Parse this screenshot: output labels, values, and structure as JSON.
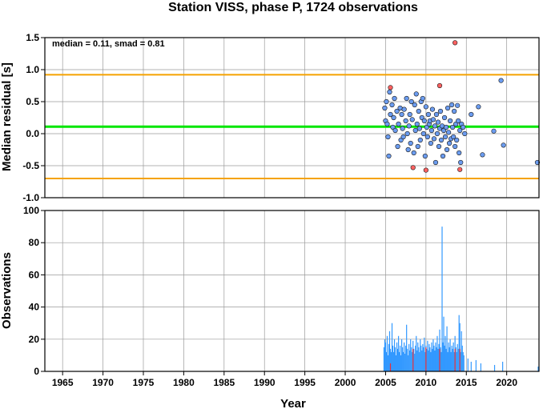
{
  "chart_data": [
    {
      "type": "scatter",
      "title": "Station VISS, phase P, 1724 observations",
      "xlabel": "",
      "ylabel": "Median residual [s]",
      "xlim": [
        1962.8,
        2024.0
      ],
      "ylim": [
        -1.0,
        1.5
      ],
      "yticks": [
        "1.5",
        "1.0",
        "0.5",
        "0.0",
        "-0.5",
        "-1.0"
      ],
      "annotation": "median = 0.11, smad = 0.81",
      "grid": true,
      "reference_lines": [
        {
          "y": 0.11,
          "color": "#00e600",
          "role": "median"
        },
        {
          "y": 0.92,
          "color": "#f5a200",
          "role": "upper bound"
        },
        {
          "y": -0.7,
          "color": "#f5a200",
          "role": "lower bound"
        }
      ],
      "colors": {
        "point": "#6b9cf0",
        "outlier": "#ff6161",
        "edge": "#1a1a1a"
      },
      "series": [
        {
          "role": "inliers",
          "points": [
            [
              2004.9,
              0.4
            ],
            [
              2005.0,
              0.2
            ],
            [
              2005.1,
              0.5
            ],
            [
              2005.2,
              0.15
            ],
            [
              2005.3,
              -0.05
            ],
            [
              2005.4,
              -0.35
            ],
            [
              2005.5,
              0.65
            ],
            [
              2005.6,
              0.3
            ],
            [
              2005.8,
              0.45
            ],
            [
              2005.9,
              0.1
            ],
            [
              2006.0,
              0.25
            ],
            [
              2006.1,
              0.55
            ],
            [
              2006.2,
              0.05
            ],
            [
              2006.4,
              0.35
            ],
            [
              2006.5,
              -0.2
            ],
            [
              2006.6,
              0.15
            ],
            [
              2006.8,
              0.4
            ],
            [
              2006.9,
              -0.1
            ],
            [
              2007.0,
              0.3
            ],
            [
              2007.1,
              0.08
            ],
            [
              2007.2,
              -0.05
            ],
            [
              2007.3,
              0.38
            ],
            [
              2007.5,
              0.2
            ],
            [
              2007.6,
              0.55
            ],
            [
              2007.7,
              0.0
            ],
            [
              2007.8,
              -0.25
            ],
            [
              2007.9,
              0.12
            ],
            [
              2008.0,
              0.3
            ],
            [
              2008.1,
              -0.15
            ],
            [
              2008.2,
              0.5
            ],
            [
              2008.3,
              0.22
            ],
            [
              2008.5,
              -0.3
            ],
            [
              2008.6,
              0.45
            ],
            [
              2008.7,
              0.05
            ],
            [
              2008.8,
              0.62
            ],
            [
              2008.9,
              0.15
            ],
            [
              2009.0,
              -0.2
            ],
            [
              2009.1,
              0.35
            ],
            [
              2009.2,
              0.08
            ],
            [
              2009.3,
              -0.1
            ],
            [
              2009.4,
              0.5
            ],
            [
              2009.5,
              0.25
            ],
            [
              2009.6,
              0.55
            ],
            [
              2009.7,
              0.0
            ],
            [
              2009.8,
              0.2
            ],
            [
              2009.9,
              -0.35
            ],
            [
              2010.0,
              0.42
            ],
            [
              2010.1,
              0.1
            ],
            [
              2010.2,
              -0.05
            ],
            [
              2010.3,
              0.3
            ],
            [
              2010.4,
              0.15
            ],
            [
              2010.5,
              0.2
            ],
            [
              2010.6,
              -0.15
            ],
            [
              2010.7,
              0.05
            ],
            [
              2010.8,
              0.38
            ],
            [
              2010.9,
              0.22
            ],
            [
              2011.0,
              -0.08
            ],
            [
              2011.1,
              0.12
            ],
            [
              2011.2,
              -0.45
            ],
            [
              2011.3,
              0.3
            ],
            [
              2011.4,
              0.0
            ],
            [
              2011.5,
              0.18
            ],
            [
              2011.6,
              -0.2
            ],
            [
              2011.7,
              0.08
            ],
            [
              2011.8,
              0.35
            ],
            [
              2011.9,
              -0.1
            ],
            [
              2012.0,
              0.12
            ],
            [
              2012.1,
              -0.35
            ],
            [
              2012.2,
              0.05
            ],
            [
              2012.3,
              0.25
            ],
            [
              2012.4,
              -0.05
            ],
            [
              2012.5,
              0.1
            ],
            [
              2012.6,
              -0.25
            ],
            [
              2012.7,
              0.4
            ],
            [
              2012.8,
              0.02
            ],
            [
              2012.9,
              -0.15
            ],
            [
              2013.0,
              0.2
            ],
            [
              2013.1,
              -0.08
            ],
            [
              2013.2,
              0.45
            ],
            [
              2013.3,
              0.1
            ],
            [
              2013.4,
              -0.05
            ],
            [
              2013.5,
              0.35
            ],
            [
              2013.6,
              -0.2
            ],
            [
              2013.7,
              0.15
            ],
            [
              2013.8,
              -0.1
            ],
            [
              2013.9,
              0.44
            ],
            [
              2014.0,
              0.2
            ],
            [
              2014.1,
              -0.3
            ],
            [
              2014.2,
              0.05
            ],
            [
              2014.3,
              -0.45
            ],
            [
              2014.4,
              0.15
            ],
            [
              2014.6,
              0.1
            ],
            [
              2014.8,
              0.0
            ],
            [
              2015.6,
              0.3
            ],
            [
              2016.5,
              0.42
            ],
            [
              2017.0,
              -0.33
            ],
            [
              2018.4,
              0.04
            ],
            [
              2019.3,
              0.83
            ],
            [
              2019.6,
              -0.18
            ],
            [
              2023.8,
              -0.45
            ]
          ]
        },
        {
          "role": "outliers",
          "points": [
            [
              2005.6,
              0.72
            ],
            [
              2008.4,
              -0.53
            ],
            [
              2010.0,
              -0.57
            ],
            [
              2011.7,
              0.75
            ],
            [
              2013.6,
              1.42
            ],
            [
              2014.2,
              -0.56
            ]
          ]
        }
      ]
    },
    {
      "type": "bar",
      "title": "",
      "xlabel": "Year",
      "ylabel": "Observations",
      "xlim": [
        1962.8,
        2024.0
      ],
      "ylim": [
        0,
        100
      ],
      "yticks": [
        "100",
        "80",
        "60",
        "40",
        "20",
        "0"
      ],
      "xticks": [
        "1965",
        "1970",
        "1975",
        "1980",
        "1985",
        "1990",
        "1995",
        "2000",
        "2005",
        "2010",
        "2015",
        "2020"
      ],
      "grid": true,
      "colors": {
        "bar": "#3399ff",
        "outlier_bar": "#e8303a"
      },
      "series": [
        {
          "role": "observations",
          "points": [
            [
              2004.8,
              15
            ],
            [
              2004.9,
              20
            ],
            [
              2005.0,
              18
            ],
            [
              2005.1,
              12
            ],
            [
              2005.2,
              22
            ],
            [
              2005.3,
              10
            ],
            [
              2005.4,
              17
            ],
            [
              2005.5,
              25
            ],
            [
              2005.6,
              14
            ],
            [
              2005.7,
              12
            ],
            [
              2005.8,
              30
            ],
            [
              2005.9,
              16
            ],
            [
              2006.0,
              12
            ],
            [
              2006.1,
              20
            ],
            [
              2006.2,
              15
            ],
            [
              2006.3,
              10
            ],
            [
              2006.4,
              18
            ],
            [
              2006.5,
              14
            ],
            [
              2006.6,
              22
            ],
            [
              2006.7,
              12
            ],
            [
              2006.8,
              16
            ],
            [
              2006.9,
              10
            ],
            [
              2007.0,
              20
            ],
            [
              2007.1,
              15
            ],
            [
              2007.2,
              12
            ],
            [
              2007.3,
              18
            ],
            [
              2007.4,
              11
            ],
            [
              2007.5,
              16
            ],
            [
              2007.6,
              29
            ],
            [
              2007.7,
              14
            ],
            [
              2007.8,
              10
            ],
            [
              2007.9,
              17
            ],
            [
              2008.0,
              13
            ],
            [
              2008.1,
              20
            ],
            [
              2008.2,
              15
            ],
            [
              2008.3,
              12
            ],
            [
              2008.4,
              19
            ],
            [
              2008.5,
              14
            ],
            [
              2008.6,
              11
            ],
            [
              2008.7,
              16
            ],
            [
              2008.8,
              22
            ],
            [
              2008.9,
              13
            ],
            [
              2009.0,
              18
            ],
            [
              2009.1,
              15
            ],
            [
              2009.2,
              12
            ],
            [
              2009.3,
              20
            ],
            [
              2009.4,
              16
            ],
            [
              2009.5,
              13
            ],
            [
              2009.6,
              17
            ],
            [
              2009.7,
              15
            ],
            [
              2009.8,
              21
            ],
            [
              2009.9,
              12
            ],
            [
              2010.0,
              16
            ],
            [
              2010.1,
              14
            ],
            [
              2010.2,
              19
            ],
            [
              2010.3,
              13
            ],
            [
              2010.4,
              17
            ],
            [
              2010.5,
              15
            ],
            [
              2010.6,
              12
            ],
            [
              2010.7,
              18
            ],
            [
              2010.8,
              14
            ],
            [
              2010.9,
              20
            ],
            [
              2011.0,
              16
            ],
            [
              2011.1,
              13
            ],
            [
              2011.2,
              18
            ],
            [
              2011.3,
              15
            ],
            [
              2011.4,
              22
            ],
            [
              2011.5,
              14
            ],
            [
              2011.6,
              17
            ],
            [
              2011.7,
              26
            ],
            [
              2011.8,
              15
            ],
            [
              2011.9,
              12
            ],
            [
              2012.0,
              90
            ],
            [
              2012.1,
              18
            ],
            [
              2012.2,
              34
            ],
            [
              2012.3,
              16
            ],
            [
              2012.4,
              22
            ],
            [
              2012.5,
              14
            ],
            [
              2012.6,
              28
            ],
            [
              2012.7,
              12
            ],
            [
              2012.8,
              18
            ],
            [
              2012.9,
              15
            ],
            [
              2013.0,
              20
            ],
            [
              2013.1,
              12
            ],
            [
              2013.2,
              16
            ],
            [
              2013.3,
              14
            ],
            [
              2013.4,
              18
            ],
            [
              2013.5,
              12
            ],
            [
              2013.6,
              22
            ],
            [
              2013.7,
              15
            ],
            [
              2013.8,
              12
            ],
            [
              2013.9,
              17
            ],
            [
              2014.0,
              14
            ],
            [
              2014.1,
              35
            ],
            [
              2014.2,
              30
            ],
            [
              2014.3,
              12
            ],
            [
              2014.4,
              25
            ],
            [
              2014.5,
              16
            ],
            [
              2014.6,
              12
            ],
            [
              2014.7,
              10
            ],
            [
              2015.2,
              8
            ],
            [
              2015.6,
              6
            ],
            [
              2016.2,
              7
            ],
            [
              2016.8,
              5
            ],
            [
              2018.5,
              4
            ],
            [
              2019.5,
              6
            ],
            [
              2023.9,
              3
            ]
          ]
        },
        {
          "role": "outlier_observations",
          "points": [
            [
              2005.6,
              5
            ],
            [
              2008.4,
              14
            ],
            [
              2010.0,
              15
            ],
            [
              2011.7,
              14
            ],
            [
              2013.6,
              14
            ],
            [
              2014.2,
              14
            ]
          ]
        }
      ]
    }
  ]
}
